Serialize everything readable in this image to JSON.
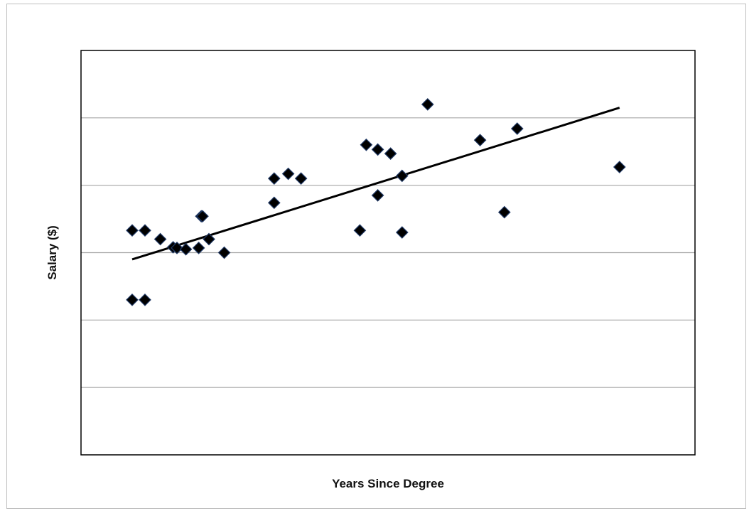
{
  "chart_data": {
    "type": "scatter",
    "title": "",
    "xlabel": "Years Since Degree",
    "ylabel": "Salary ($)",
    "xlim": [
      0,
      48
    ],
    "ylim": [
      0,
      6
    ],
    "grid": true,
    "legend": "none",
    "colors": {
      "marker": "#000000",
      "marker_edge": "#1f3864",
      "trendline": "#000000",
      "gridline": "#a6a6a6",
      "frame": "#000000"
    },
    "series": [
      {
        "x": [
          4,
          5,
          6.2,
          7.2,
          7.5,
          8.2,
          9.2,
          9.4,
          10,
          11.2,
          15.1,
          15.1,
          16.2,
          17.2,
          21.8,
          22.3,
          23.2,
          23.2,
          24.2,
          25.1,
          25.1,
          27.1,
          31.2,
          33.1,
          34.1,
          42.1,
          4,
          5,
          9.5
        ],
        "y": [
          3.33,
          3.33,
          3.2,
          3.08,
          3.07,
          3.05,
          3.07,
          3.54,
          3.2,
          3.0,
          3.74,
          4.1,
          4.17,
          4.1,
          3.33,
          4.6,
          3.85,
          4.53,
          4.47,
          3.3,
          4.14,
          5.2,
          4.67,
          3.6,
          4.84,
          4.27,
          2.3,
          2.3,
          3.54
        ]
      }
    ],
    "trendline": {
      "x": [
        4,
        42.1
      ],
      "y": [
        2.9,
        5.15
      ]
    }
  }
}
